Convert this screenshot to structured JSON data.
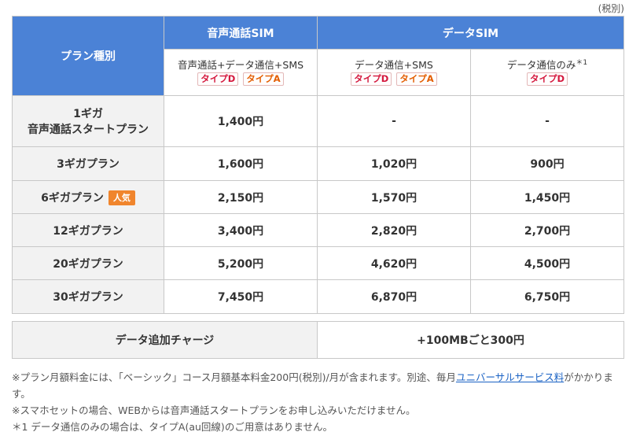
{
  "tax_note": "(税別)",
  "header": {
    "plan_type": "プラン種別",
    "voice_sim": "音声通話SIM",
    "data_sim": "データSIM",
    "col1": {
      "label": "音声通話+データ通信+SMS",
      "badges": [
        "タイプD",
        "タイプA"
      ]
    },
    "col2": {
      "label": "データ通信+SMS",
      "badges": [
        "タイプD",
        "タイプA"
      ]
    },
    "col3": {
      "label": "データ通信のみ",
      "sup": "＊1",
      "badges": [
        "タイプD"
      ]
    }
  },
  "plans": [
    {
      "name_line1": "1ギガ",
      "name_line2": "音声通話スタートプラン",
      "voice": "1,400円",
      "data_sms": "-",
      "data_only": "-"
    },
    {
      "name": "3ギガプラン",
      "voice": "1,600円",
      "data_sms": "1,020円",
      "data_only": "900円"
    },
    {
      "name": "6ギガプラン",
      "badge": "人気",
      "voice": "2,150円",
      "data_sms": "1,570円",
      "data_only": "1,450円"
    },
    {
      "name": "12ギガプラン",
      "voice": "3,400円",
      "data_sms": "2,820円",
      "data_only": "2,700円"
    },
    {
      "name": "20ギガプラン",
      "voice": "5,200円",
      "data_sms": "4,620円",
      "data_only": "4,500円"
    },
    {
      "name": "30ギガプラン",
      "voice": "7,450円",
      "data_sms": "6,870円",
      "data_only": "6,750円"
    }
  ],
  "charge": {
    "label": "データ追加チャージ",
    "value": "+100MBごと300円"
  },
  "notes": {
    "n1_before": "※プラン月額料金には、「ベーシック」コース月額基本料金200円(税別)/月が含まれます。別途、毎月",
    "n1_link": "ユニバーサルサービス料",
    "n1_after": "がかかります。",
    "n2": "※スマホセットの場合、WEBからは音声通話スタートプランをお申し込みいただけません。",
    "n3": "＊1 データ通信のみの場合は、タイプA(au回線)のご用意はありません。"
  }
}
